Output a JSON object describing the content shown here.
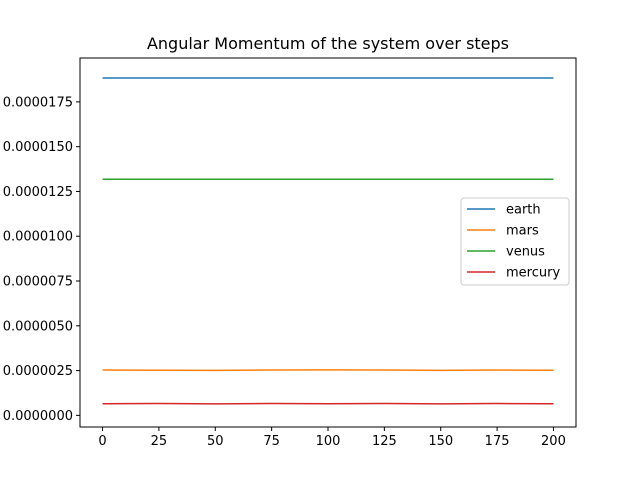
{
  "chart_data": {
    "type": "line",
    "title": "Angular Momentum of the system over steps",
    "xlabel": "",
    "ylabel": "",
    "xlim": [
      -10,
      210
    ],
    "ylim": [
      -6.5e-07,
      1.995e-05
    ],
    "x_ticks": [
      0,
      25,
      50,
      75,
      100,
      125,
      150,
      175,
      200
    ],
    "x_tick_labels": [
      "0",
      "25",
      "50",
      "75",
      "100",
      "125",
      "150",
      "175",
      "200"
    ],
    "y_ticks": [
      0.0,
      2.5e-06,
      5e-06,
      7.5e-06,
      1e-05,
      1.25e-05,
      1.5e-05,
      1.75e-05
    ],
    "y_tick_labels": [
      "0.0000000",
      "0.0000025",
      "0.0000050",
      "0.0000075",
      "0.0000100",
      "0.0000125",
      "0.0000150",
      "0.0000175"
    ],
    "grid": false,
    "legend_position": "right",
    "x": [
      0,
      25,
      50,
      75,
      100,
      125,
      150,
      175,
      200
    ],
    "series": [
      {
        "name": "earth",
        "color": "#1f77b4",
        "values": [
          1.883e-05,
          1.883e-05,
          1.883e-05,
          1.883e-05,
          1.883e-05,
          1.883e-05,
          1.883e-05,
          1.883e-05,
          1.883e-05
        ]
      },
      {
        "name": "mars",
        "color": "#ff7f0e",
        "values": [
          2.53e-06,
          2.52e-06,
          2.51e-06,
          2.53e-06,
          2.54e-06,
          2.53e-06,
          2.51e-06,
          2.53e-06,
          2.52e-06
        ]
      },
      {
        "name": "venus",
        "color": "#2ca02c",
        "values": [
          1.318e-05,
          1.318e-05,
          1.318e-05,
          1.318e-05,
          1.318e-05,
          1.318e-05,
          1.318e-05,
          1.318e-05,
          1.318e-05
        ]
      },
      {
        "name": "mercury",
        "color": "#d62728",
        "values": [
          6.5e-07,
          6.6e-07,
          6.4e-07,
          6.6e-07,
          6.5e-07,
          6.6e-07,
          6.4e-07,
          6.6e-07,
          6.5e-07
        ]
      }
    ]
  }
}
